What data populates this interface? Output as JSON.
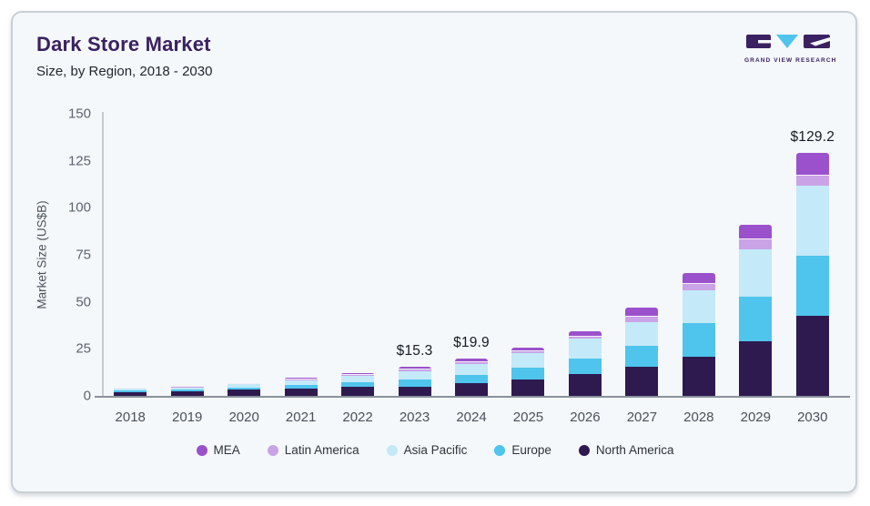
{
  "header": {
    "title": "Dark Store Market",
    "subtitle": "Size, by Region, 2018 - 2030",
    "logo_caption": "GRAND VIEW RESEARCH"
  },
  "colors": {
    "accent_purple": "#3a2161",
    "logo_cyan": "#4fc4ec",
    "card_bg": "#f5f8fa",
    "card_border": "#c9cfd7"
  },
  "chart_data": {
    "type": "bar",
    "stacked": true,
    "title": "Dark Store Market Size, by Region, 2018 - 2030",
    "xlabel": "",
    "ylabel": "Market Size (US$B)",
    "ylim": [
      0,
      150
    ],
    "yticks": [
      0,
      25,
      50,
      75,
      100,
      125,
      150
    ],
    "grid": false,
    "legend_position": "bottom",
    "categories": [
      "2018",
      "2019",
      "2020",
      "2021",
      "2022",
      "2023",
      "2024",
      "2025",
      "2026",
      "2027",
      "2028",
      "2029",
      "2030"
    ],
    "series": [
      {
        "name": "North America",
        "color": "#2e1a4f",
        "values": [
          2.2,
          2.5,
          3.2,
          4.0,
          4.6,
          5.0,
          6.6,
          8.5,
          11.7,
          15.5,
          21.0,
          29.1,
          42.5
        ]
      },
      {
        "name": "Europe",
        "color": "#4fc4ec",
        "values": [
          0.7,
          0.8,
          1.1,
          1.8,
          2.5,
          3.5,
          4.3,
          6.5,
          8.3,
          11.3,
          17.5,
          23.8,
          32.0
        ]
      },
      {
        "name": "Asia Pacific",
        "color": "#c4e9f8",
        "values": [
          1.3,
          1.5,
          2.0,
          2.6,
          3.5,
          4.5,
          5.9,
          7.5,
          10.3,
          12.4,
          17.5,
          25.2,
          37.5
        ]
      },
      {
        "name": "Latin America",
        "color": "#c9a3e6",
        "values": [
          0.1,
          0.15,
          0.2,
          0.3,
          0.4,
          0.8,
          1.1,
          1.0,
          1.2,
          3.0,
          3.7,
          5.3,
          5.2
        ]
      },
      {
        "name": "MEA",
        "color": "#9b51cc",
        "values": [
          0.2,
          0.25,
          0.5,
          0.8,
          1.2,
          1.5,
          2.0,
          2.2,
          3.0,
          4.9,
          5.8,
          7.8,
          12.0
        ]
      }
    ],
    "totals_labels": {
      "2023": "$15.3",
      "2024": "$19.9",
      "2030": "$129.2"
    },
    "legend": [
      "MEA",
      "Latin America",
      "Asia Pacific",
      "Europe",
      "North America"
    ]
  }
}
